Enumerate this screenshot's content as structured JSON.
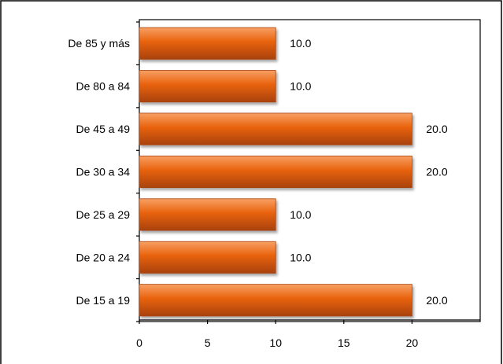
{
  "chart_data": {
    "type": "bar",
    "orientation": "horizontal",
    "title": "",
    "xlabel": "",
    "ylabel": "",
    "categories": [
      "De 85  y más",
      "De 80 a 84",
      "De 45 a 49",
      "De 30 a 34",
      "De 25 a 29",
      "De 20 a 24",
      "De 15 a 19"
    ],
    "values": [
      10.0,
      10.0,
      20.0,
      20.0,
      10.0,
      10.0,
      20.0
    ],
    "value_labels": [
      "10.0",
      "10.0",
      "20.0",
      "20.0",
      "10.0",
      "10.0",
      "20.0"
    ],
    "xlim": [
      0,
      25
    ],
    "x_ticks": [
      0,
      5,
      10,
      15,
      20
    ],
    "x_tick_labels": [
      "0",
      "5",
      "10",
      "15",
      "20"
    ],
    "grid": false,
    "legend": "none",
    "colors": {
      "bar": "#e8620c",
      "bar_light": "#f7a064",
      "bar_dark": "#a9420a",
      "plot_border": "#000000",
      "frame": "#000000",
      "background": "#ffffff"
    }
  }
}
